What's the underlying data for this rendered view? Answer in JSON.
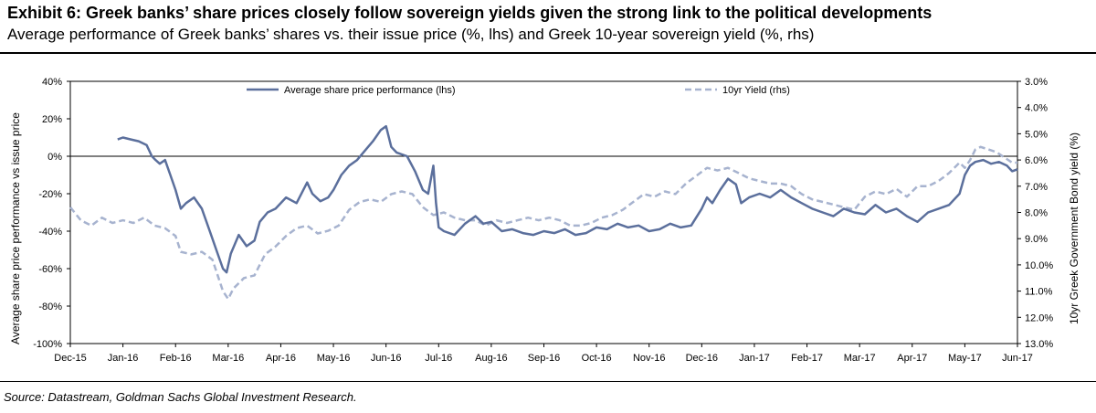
{
  "header": {
    "title": "Exhibit 6:  Greek banks’ share prices closely follow sovereign yields given the strong link to the political developments",
    "subtitle": "Average performance of Greek banks’ shares vs. their issue price (%, lhs) and Greek 10-year sovereign yield (%, rhs)"
  },
  "footer": {
    "source": "Source: Datastream, Goldman Sachs Global Investment Research."
  },
  "chart_data": {
    "type": "line",
    "title": "Exhibit 6:  Greek banks’ share prices closely follow sovereign yields given the strong link to the political developments",
    "subtitle": "Average performance of Greek banks’ shares vs. their issue price (%, lhs) and Greek 10-year sovereign yield (%, rhs)",
    "x_tick_labels": [
      "Dec-15",
      "Jan-16",
      "Feb-16",
      "Mar-16",
      "Apr-16",
      "May-16",
      "Jun-16",
      "Jul-16",
      "Aug-16",
      "Sep-16",
      "Oct-16",
      "Nov-16",
      "Dec-16",
      "Jan-17",
      "Feb-17",
      "Mar-17",
      "Apr-17",
      "May-17",
      "Jun-17"
    ],
    "x_range_months": [
      0,
      18
    ],
    "ylabel_left": "Average share price performance vs issue price",
    "ylabel_right": "10yr Greek Government Bond yield (%)",
    "y_left": {
      "min": -100,
      "max": 40,
      "ticks": [
        -100,
        -80,
        -60,
        -40,
        -20,
        0,
        20,
        40
      ],
      "tick_labels": [
        "-100%",
        "-80%",
        "-60%",
        "-40%",
        "-20%",
        "0%",
        "20%",
        "40%"
      ]
    },
    "y_right": {
      "min": 3.0,
      "max": 13.0,
      "inverted": true,
      "ticks": [
        3,
        4,
        5,
        6,
        7,
        8,
        9,
        10,
        11,
        12,
        13
      ],
      "tick_labels": [
        "3.0%",
        "4.0%",
        "5.0%",
        "6.0%",
        "7.0%",
        "8.0%",
        "9.0%",
        "10.0%",
        "11.0%",
        "12.0%",
        "13.0%"
      ]
    },
    "reference_line_left": 0,
    "legend_position": "top",
    "colors": {
      "share": "#5b6f9c",
      "yield": "#a7b3cf",
      "axis": "#000000",
      "zero_line": "#000000"
    },
    "series": [
      {
        "name": "Average share price performance (lhs)",
        "axis": "left",
        "style": "solid",
        "points": [
          [
            0.9,
            9
          ],
          [
            1.0,
            10
          ],
          [
            1.15,
            9
          ],
          [
            1.3,
            8
          ],
          [
            1.45,
            6
          ],
          [
            1.55,
            0
          ],
          [
            1.62,
            -2
          ],
          [
            1.7,
            -4
          ],
          [
            1.8,
            -2
          ],
          [
            1.9,
            -10
          ],
          [
            2.0,
            -18
          ],
          [
            2.1,
            -28
          ],
          [
            2.2,
            -25
          ],
          [
            2.35,
            -22
          ],
          [
            2.5,
            -28
          ],
          [
            2.65,
            -40
          ],
          [
            2.8,
            -52
          ],
          [
            2.9,
            -60
          ],
          [
            2.97,
            -62
          ],
          [
            3.05,
            -52
          ],
          [
            3.2,
            -42
          ],
          [
            3.35,
            -48
          ],
          [
            3.5,
            -45
          ],
          [
            3.6,
            -35
          ],
          [
            3.75,
            -30
          ],
          [
            3.9,
            -28
          ],
          [
            4.1,
            -22
          ],
          [
            4.3,
            -25
          ],
          [
            4.5,
            -14
          ],
          [
            4.6,
            -20
          ],
          [
            4.75,
            -24
          ],
          [
            4.9,
            -22
          ],
          [
            5.0,
            -18
          ],
          [
            5.15,
            -10
          ],
          [
            5.3,
            -5
          ],
          [
            5.45,
            -2
          ],
          [
            5.6,
            3
          ],
          [
            5.75,
            8
          ],
          [
            5.9,
            14
          ],
          [
            6.0,
            16
          ],
          [
            6.1,
            5
          ],
          [
            6.2,
            2
          ],
          [
            6.4,
            0
          ],
          [
            6.55,
            -8
          ],
          [
            6.7,
            -18
          ],
          [
            6.8,
            -20
          ],
          [
            6.9,
            -5
          ],
          [
            6.95,
            -25
          ],
          [
            7.0,
            -38
          ],
          [
            7.1,
            -40
          ],
          [
            7.3,
            -42
          ],
          [
            7.5,
            -36
          ],
          [
            7.7,
            -32
          ],
          [
            7.85,
            -36
          ],
          [
            8.0,
            -35
          ],
          [
            8.2,
            -40
          ],
          [
            8.4,
            -39
          ],
          [
            8.6,
            -41
          ],
          [
            8.8,
            -42
          ],
          [
            9.0,
            -40
          ],
          [
            9.2,
            -41
          ],
          [
            9.4,
            -39
          ],
          [
            9.6,
            -42
          ],
          [
            9.8,
            -41
          ],
          [
            10.0,
            -38
          ],
          [
            10.2,
            -39
          ],
          [
            10.4,
            -36
          ],
          [
            10.6,
            -38
          ],
          [
            10.8,
            -37
          ],
          [
            11.0,
            -40
          ],
          [
            11.2,
            -39
          ],
          [
            11.4,
            -36
          ],
          [
            11.6,
            -38
          ],
          [
            11.8,
            -37
          ],
          [
            12.0,
            -28
          ],
          [
            12.1,
            -22
          ],
          [
            12.2,
            -25
          ],
          [
            12.35,
            -18
          ],
          [
            12.5,
            -12
          ],
          [
            12.65,
            -15
          ],
          [
            12.75,
            -25
          ],
          [
            12.9,
            -22
          ],
          [
            13.1,
            -20
          ],
          [
            13.3,
            -22
          ],
          [
            13.5,
            -18
          ],
          [
            13.7,
            -22
          ],
          [
            13.9,
            -25
          ],
          [
            14.1,
            -28
          ],
          [
            14.3,
            -30
          ],
          [
            14.5,
            -32
          ],
          [
            14.7,
            -28
          ],
          [
            14.9,
            -30
          ],
          [
            15.1,
            -31
          ],
          [
            15.3,
            -26
          ],
          [
            15.5,
            -30
          ],
          [
            15.7,
            -28
          ],
          [
            15.9,
            -32
          ],
          [
            16.1,
            -35
          ],
          [
            16.3,
            -30
          ],
          [
            16.5,
            -28
          ],
          [
            16.7,
            -26
          ],
          [
            16.9,
            -20
          ],
          [
            17.0,
            -10
          ],
          [
            17.1,
            -5
          ],
          [
            17.2,
            -3
          ],
          [
            17.35,
            -2
          ],
          [
            17.5,
            -4
          ],
          [
            17.65,
            -3
          ],
          [
            17.8,
            -5
          ],
          [
            17.9,
            -8
          ],
          [
            18.0,
            -7
          ]
        ]
      },
      {
        "name": "10yr Yield (rhs)",
        "axis": "right",
        "style": "dashed",
        "points": [
          [
            0.0,
            7.8
          ],
          [
            0.2,
            8.3
          ],
          [
            0.4,
            8.5
          ],
          [
            0.6,
            8.2
          ],
          [
            0.8,
            8.4
          ],
          [
            1.0,
            8.3
          ],
          [
            1.2,
            8.4
          ],
          [
            1.4,
            8.2
          ],
          [
            1.6,
            8.5
          ],
          [
            1.8,
            8.6
          ],
          [
            2.0,
            8.9
          ],
          [
            2.1,
            9.5
          ],
          [
            2.3,
            9.6
          ],
          [
            2.5,
            9.5
          ],
          [
            2.7,
            9.8
          ],
          [
            2.9,
            11.0
          ],
          [
            3.0,
            11.3
          ],
          [
            3.1,
            10.9
          ],
          [
            3.3,
            10.5
          ],
          [
            3.5,
            10.4
          ],
          [
            3.7,
            9.6
          ],
          [
            3.9,
            9.3
          ],
          [
            4.1,
            8.9
          ],
          [
            4.3,
            8.6
          ],
          [
            4.5,
            8.5
          ],
          [
            4.7,
            8.8
          ],
          [
            4.9,
            8.7
          ],
          [
            5.1,
            8.5
          ],
          [
            5.3,
            7.9
          ],
          [
            5.5,
            7.6
          ],
          [
            5.7,
            7.5
          ],
          [
            5.9,
            7.6
          ],
          [
            6.1,
            7.3
          ],
          [
            6.3,
            7.2
          ],
          [
            6.5,
            7.3
          ],
          [
            6.7,
            7.8
          ],
          [
            6.9,
            8.1
          ],
          [
            7.1,
            8.0
          ],
          [
            7.3,
            8.2
          ],
          [
            7.5,
            8.3
          ],
          [
            7.7,
            8.3
          ],
          [
            7.9,
            8.5
          ],
          [
            8.1,
            8.3
          ],
          [
            8.3,
            8.4
          ],
          [
            8.5,
            8.3
          ],
          [
            8.7,
            8.2
          ],
          [
            8.9,
            8.3
          ],
          [
            9.1,
            8.2
          ],
          [
            9.3,
            8.3
          ],
          [
            9.5,
            8.5
          ],
          [
            9.7,
            8.5
          ],
          [
            9.9,
            8.4
          ],
          [
            10.1,
            8.2
          ],
          [
            10.3,
            8.1
          ],
          [
            10.5,
            7.9
          ],
          [
            10.7,
            7.6
          ],
          [
            10.9,
            7.3
          ],
          [
            11.1,
            7.4
          ],
          [
            11.3,
            7.2
          ],
          [
            11.5,
            7.3
          ],
          [
            11.7,
            6.9
          ],
          [
            11.9,
            6.6
          ],
          [
            12.1,
            6.3
          ],
          [
            12.3,
            6.4
          ],
          [
            12.5,
            6.3
          ],
          [
            12.7,
            6.5
          ],
          [
            12.9,
            6.7
          ],
          [
            13.1,
            6.8
          ],
          [
            13.3,
            6.9
          ],
          [
            13.5,
            6.9
          ],
          [
            13.7,
            7.0
          ],
          [
            13.9,
            7.3
          ],
          [
            14.1,
            7.5
          ],
          [
            14.3,
            7.6
          ],
          [
            14.5,
            7.7
          ],
          [
            14.7,
            7.8
          ],
          [
            14.9,
            7.9
          ],
          [
            15.1,
            7.4
          ],
          [
            15.3,
            7.2
          ],
          [
            15.5,
            7.3
          ],
          [
            15.7,
            7.1
          ],
          [
            15.9,
            7.4
          ],
          [
            16.1,
            7.0
          ],
          [
            16.3,
            7.0
          ],
          [
            16.5,
            6.8
          ],
          [
            16.7,
            6.5
          ],
          [
            16.9,
            6.1
          ],
          [
            17.0,
            6.3
          ],
          [
            17.1,
            6.0
          ],
          [
            17.2,
            5.6
          ],
          [
            17.3,
            5.5
          ],
          [
            17.45,
            5.6
          ],
          [
            17.6,
            5.7
          ],
          [
            17.75,
            5.9
          ],
          [
            17.9,
            6.1
          ],
          [
            18.0,
            6.1
          ]
        ]
      }
    ]
  }
}
